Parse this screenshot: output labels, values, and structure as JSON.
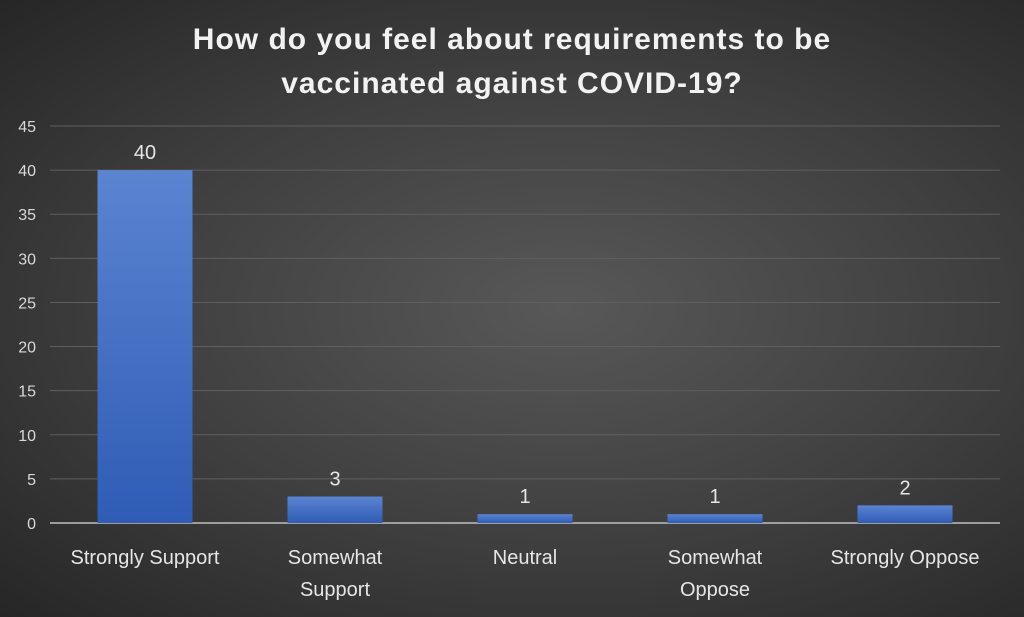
{
  "chart_data": {
    "type": "bar",
    "title": "How do you feel about requirements to be vaccinated against COVID-19?",
    "categories": [
      "Strongly Support",
      "Somewhat Support",
      "Neutral",
      "Somewhat Oppose",
      "Strongly Oppose"
    ],
    "category_lines": [
      [
        "Strongly Support"
      ],
      [
        "Somewhat",
        "Support"
      ],
      [
        "Neutral"
      ],
      [
        "Somewhat",
        "Oppose"
      ],
      [
        "Strongly Oppose"
      ]
    ],
    "values": [
      40,
      3,
      1,
      1,
      2
    ],
    "ylim": [
      0,
      45
    ],
    "yticks": [
      0,
      5,
      10,
      15,
      20,
      25,
      30,
      35,
      40,
      45
    ],
    "xlabel": "",
    "ylabel": "",
    "grid": true,
    "data_labels": true,
    "colors": {
      "bar_top": "#5b84d1",
      "bar_bottom": "#2f5cb5",
      "grid": "#5f5f5f",
      "axis": "#bfbfbf"
    }
  }
}
